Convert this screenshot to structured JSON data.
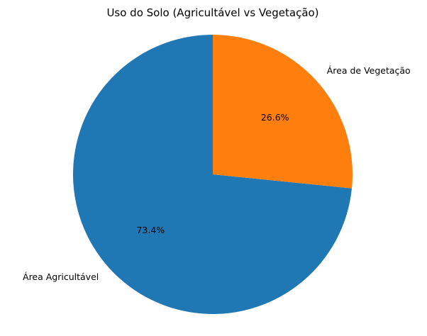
{
  "chart_data": {
    "type": "pie",
    "title": "Uso do Solo (Agricultável vs Vegetação)",
    "slices": [
      {
        "label": "Área Agricultável",
        "value": 73.4,
        "pct_label": "73.4%",
        "color": "#1f77b4"
      },
      {
        "label": "Área de Vegetação",
        "value": 26.6,
        "pct_label": "26.6%",
        "color": "#ff7f0e"
      }
    ],
    "start_angle": 90,
    "direction": "counterclockwise",
    "legend": false
  }
}
